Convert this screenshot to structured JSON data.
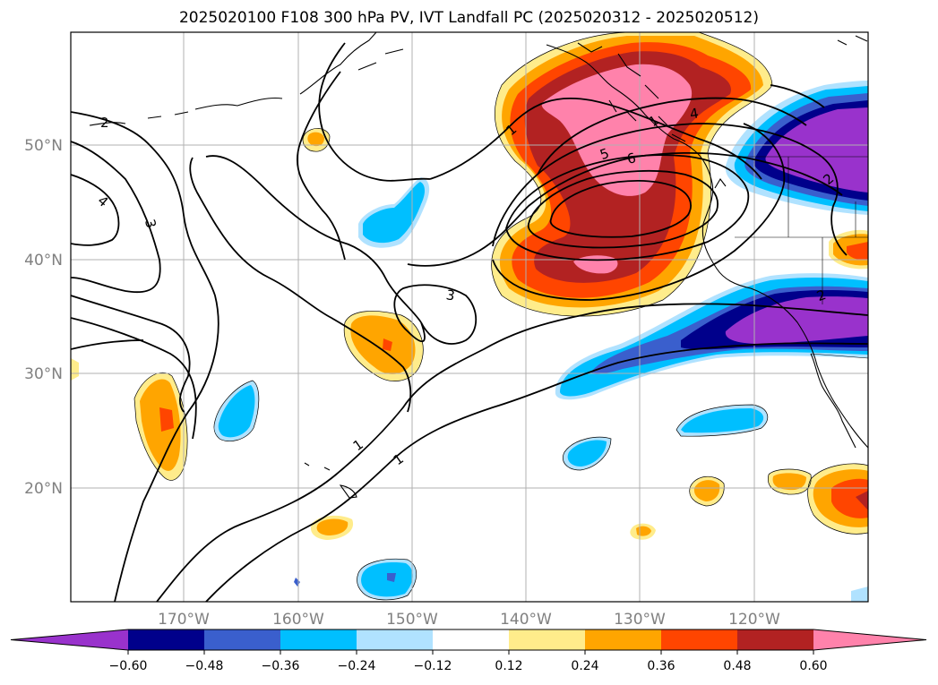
{
  "title": "2025020100 F108 300 hPa PV, IVT Landfall PC (2025020312 - 2025020512)",
  "lat_labels": [
    "50°N",
    "40°N",
    "30°N",
    "20°N"
  ],
  "lon_labels": [
    "170°W",
    "160°W",
    "150°W",
    "140°W",
    "130°W",
    "120°W"
  ],
  "contour_labels": [
    "2",
    "4",
    "3",
    "1",
    "3",
    "1",
    "1",
    "5",
    "6",
    "4",
    "2",
    "1",
    "2"
  ],
  "colorbar": {
    "ticks": [
      "−0.60",
      "−0.48",
      "−0.36",
      "−0.24",
      "−0.12",
      "0.12",
      "0.24",
      "0.36",
      "0.48",
      "0.60"
    ],
    "colors": [
      "#9932cc",
      "#00008b",
      "#3a5fcd",
      "#00bfff",
      "#b0e2ff",
      "#ffffff",
      "#ffec8b",
      "#ffa500",
      "#ff4500",
      "#b22222",
      "#ff82ab"
    ]
  },
  "palette": {
    "pink": "#ff82ab",
    "darkred": "#b22222",
    "red": "#ff4500",
    "orange": "#ffa500",
    "yellow": "#ffec8b",
    "lightblue": "#b0e2ff",
    "blue": "#00bfff",
    "royal": "#3a5fcd",
    "navy": "#00008b",
    "purple": "#9932cc",
    "grid": "#b0b0b0",
    "label": "#808080"
  }
}
